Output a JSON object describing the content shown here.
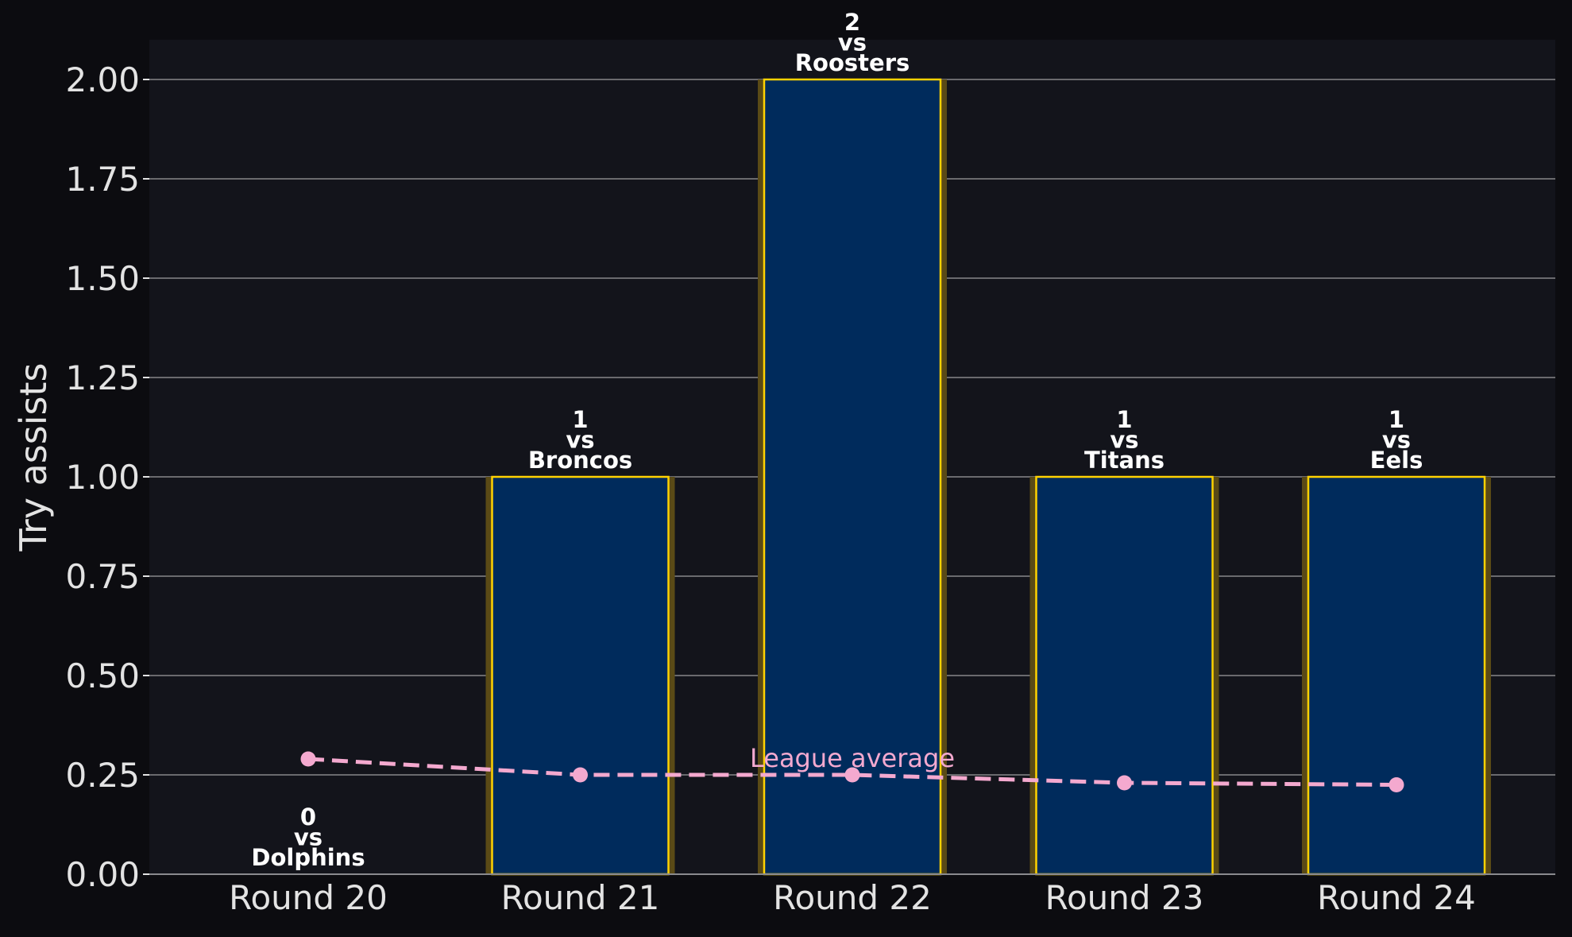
{
  "colors": {
    "page_background": "#0c0c10",
    "plot_background": "#13141b",
    "grid": "#6a6a6e",
    "bar_fill": "#002b5c",
    "bar_edge": "#ffd200",
    "bar_glow": "#5a4a16",
    "average_line": "#f4a9cf",
    "text": "#e3e3e3",
    "bar_label": "#ffffff"
  },
  "chart_data": {
    "type": "bar",
    "title": "",
    "xlabel": "",
    "ylabel": "Try assists",
    "ylim": [
      0,
      2.1
    ],
    "yticks": [
      0,
      0.25,
      0.5,
      0.75,
      1.0,
      1.25,
      1.5,
      1.75,
      2.0
    ],
    "ytick_labels": [
      "0.00",
      "0.25",
      "0.50",
      "0.75",
      "1.00",
      "1.25",
      "1.50",
      "1.75",
      "2.00"
    ],
    "grid": "horizontal",
    "categories": [
      "Round 20",
      "Round 21",
      "Round 22",
      "Round 23",
      "Round 24"
    ],
    "values": [
      0,
      1,
      2,
      1,
      1
    ],
    "bar_labels": [
      [
        "0",
        "vs",
        "Dolphins"
      ],
      [
        "1",
        "vs",
        "Broncos"
      ],
      [
        "2",
        "vs",
        "Roosters"
      ],
      [
        "1",
        "vs",
        "Titans"
      ],
      [
        "1",
        "vs",
        "Eels"
      ]
    ],
    "line_series": {
      "values": [
        0.29,
        0.25,
        0.25,
        0.23,
        0.225
      ],
      "style": "dashed with circle markers"
    },
    "annotations": [
      {
        "text": "League average",
        "x": "Round 22"
      }
    ]
  }
}
